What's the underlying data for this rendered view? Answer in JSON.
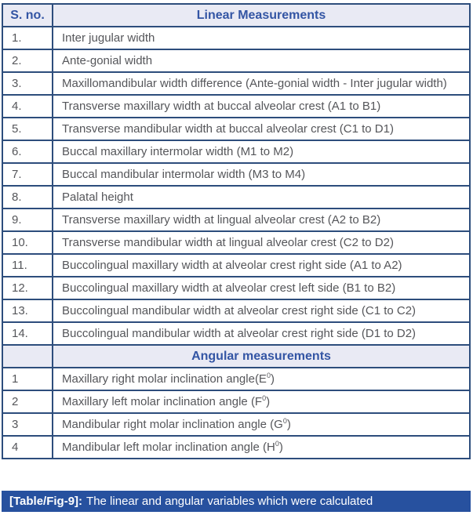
{
  "table": {
    "header": {
      "col1": "S. no.",
      "col2": "Linear Measurements"
    },
    "linear_rows": [
      {
        "num": "1.",
        "label": "Inter jugular width"
      },
      {
        "num": "2.",
        "label": "Ante-gonial width"
      },
      {
        "num": "3.",
        "label": "Maxillomandibular width difference (Ante-gonial width - Inter jugular width)"
      },
      {
        "num": "4.",
        "label": "Transverse maxillary width at buccal alveolar crest (A1 to B1)"
      },
      {
        "num": "5.",
        "label": "Transverse mandibular width at buccal alveolar crest (C1 to D1)"
      },
      {
        "num": "6.",
        "label": "Buccal maxillary intermolar width (M1 to M2)"
      },
      {
        "num": "7.",
        "label": "Buccal mandibular intermolar width (M3 to M4)"
      },
      {
        "num": "8.",
        "label": "Palatal height"
      },
      {
        "num": "9.",
        "label": "Transverse maxillary width at lingual alveolar crest (A2 to B2)"
      },
      {
        "num": "10.",
        "label": "Transverse mandibular width at lingual alveolar crest (C2 to D2)"
      },
      {
        "num": "11.",
        "label": "Buccolingual maxillary width at alveolar crest right side (A1 to A2)"
      },
      {
        "num": "12.",
        "label": "Buccolingual maxillary width at alveolar crest left side (B1 to B2)"
      },
      {
        "num": "13.",
        "label": "Buccolingual mandibular width at alveolar crest right side (C1 to C2)"
      },
      {
        "num": "14.",
        "label": "Buccolingual mandibular width at alveolar crest right side (D1 to D2)"
      }
    ],
    "angular_header": "Angular measurements",
    "angular_rows": [
      {
        "num": "1",
        "pre": "Maxillary right molar inclination angle(E",
        "sup": "0",
        "post": ")"
      },
      {
        "num": "2",
        "pre": "Maxillary left molar inclination angle (F",
        "sup": "0",
        "post": ")"
      },
      {
        "num": "3",
        "pre": "Mandibular right molar inclination angle (G",
        "sup": "0",
        "post": ")"
      },
      {
        "num": "4",
        "pre": "Mandibular left molar inclination angle (H",
        "sup": "0",
        "post": ")"
      }
    ]
  },
  "caption": {
    "tag": "[Table/Fig-9]:",
    "text": "The linear and angular variables which were calculated"
  },
  "colors": {
    "border": "#2d4d7c",
    "header_bg": "#e9eaf4",
    "header_text": "#3355a4",
    "caption_bg": "#27519f",
    "caption_text": "#ffffff",
    "body_text": "#55565a"
  }
}
